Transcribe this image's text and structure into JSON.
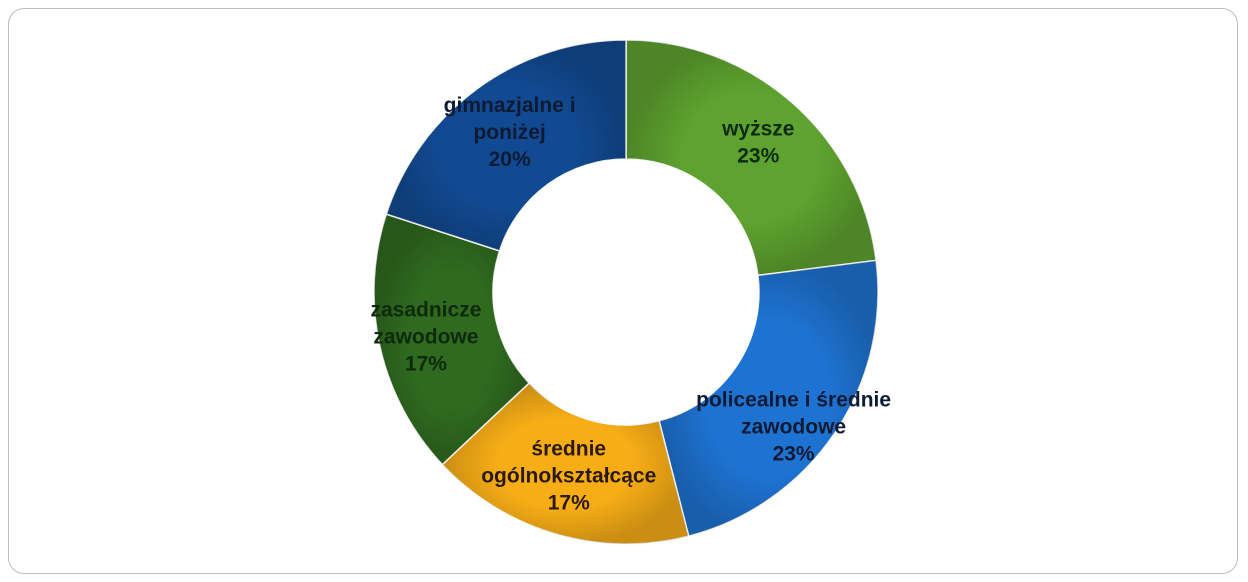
{
  "chart_data": {
    "type": "donut",
    "title": "",
    "slices": [
      {
        "label_lines": [
          "wyższe"
        ],
        "value_label": "23%",
        "value": 23,
        "color": "#5ea22f",
        "text_color": "#0d2a0d"
      },
      {
        "label_lines": [
          "policealne i średnie",
          "zawodowe"
        ],
        "value_label": "23%",
        "value": 23,
        "color": "#1e73d2",
        "text_color": "#0d1a33"
      },
      {
        "label_lines": [
          "średnie",
          "ogólnokształcące"
        ],
        "value_label": "17%",
        "value": 17,
        "color": "#f7ad16",
        "text_color": "#2a1a05"
      },
      {
        "label_lines": [
          "zasadnicze",
          "zawodowe"
        ],
        "value_label": "17%",
        "value": 17,
        "color": "#2f6a1f",
        "text_color": "#0d2a0d"
      },
      {
        "label_lines": [
          "gimnazjalne i",
          "poniżej"
        ],
        "value_label": "20%",
        "value": 20,
        "color": "#114a92",
        "text_color": "#0d1a33"
      }
    ],
    "legend": "none"
  }
}
